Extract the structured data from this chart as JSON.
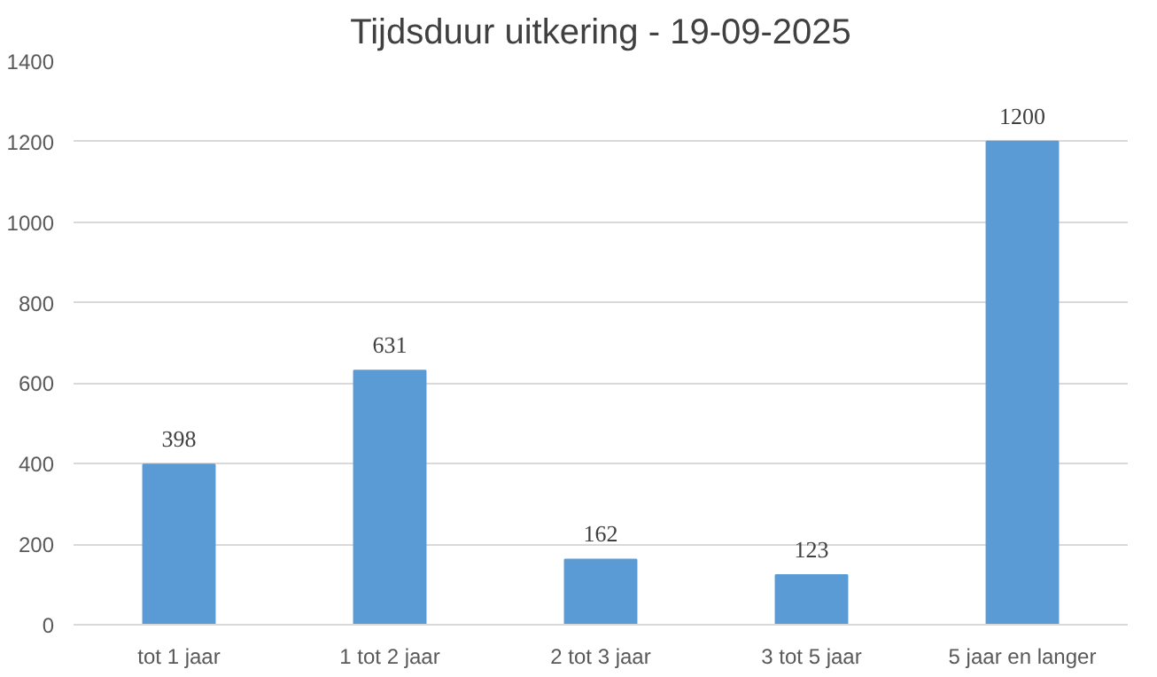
{
  "chart_data": {
    "type": "bar",
    "title": "Tijdsduur uitkering - 19-09-2025",
    "categories": [
      "tot 1 jaar",
      "1 tot 2 jaar",
      "2 tot 3 jaar",
      "3 tot 5 jaar",
      "5 jaar en langer"
    ],
    "values": [
      398,
      631,
      162,
      123,
      1200
    ],
    "color": "#5b9bd5",
    "ylim": [
      0,
      1400
    ],
    "yticks": [
      0,
      200,
      400,
      600,
      800,
      1000,
      1200,
      1400
    ],
    "grid": "y",
    "data_labels": true
  }
}
